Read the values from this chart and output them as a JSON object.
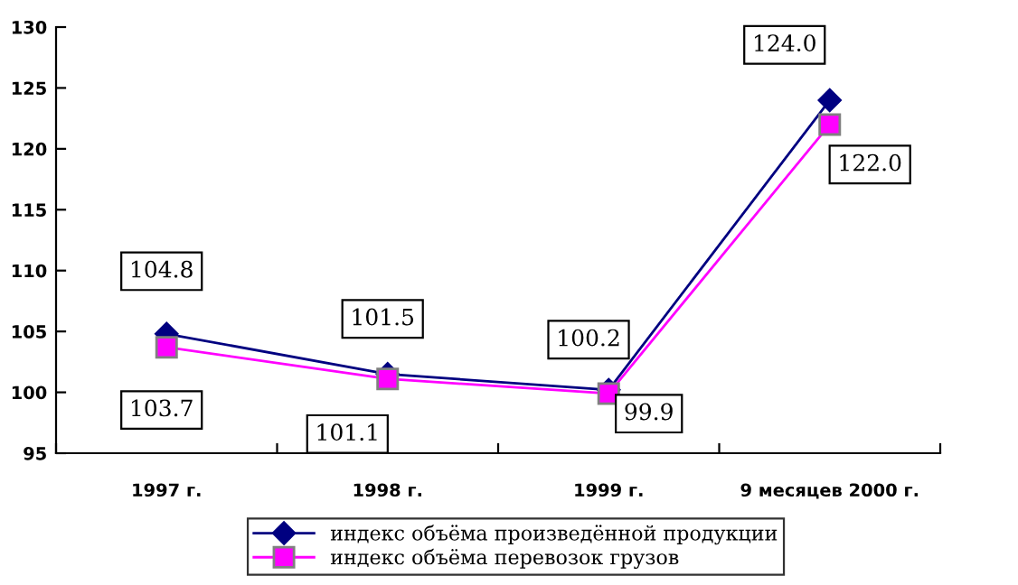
{
  "chart_data": {
    "type": "line",
    "categories": [
      "1997 г.",
      "1998 г.",
      "1999 г.",
      "9 месяцев 2000 г."
    ],
    "series": [
      {
        "name": "индекс объёма произведённой продукции",
        "color": "#000080",
        "marker": "diamond",
        "values": [
          104.8,
          101.5,
          100.2,
          124.0
        ],
        "value_labels": [
          "104.8",
          "101.5",
          "100.2",
          "124.0"
        ]
      },
      {
        "name": "индекс объёма перевозок грузов",
        "color": "#ff00ff",
        "marker": "square",
        "values": [
          103.7,
          101.1,
          99.9,
          122.0
        ],
        "value_labels": [
          "103.7",
          "101.1",
          "99.9",
          "122.0"
        ]
      }
    ],
    "ylim": [
      95,
      130
    ],
    "yticks": [
      95,
      100,
      105,
      110,
      115,
      120,
      125,
      130
    ],
    "grid": false,
    "legend": "bottom"
  }
}
